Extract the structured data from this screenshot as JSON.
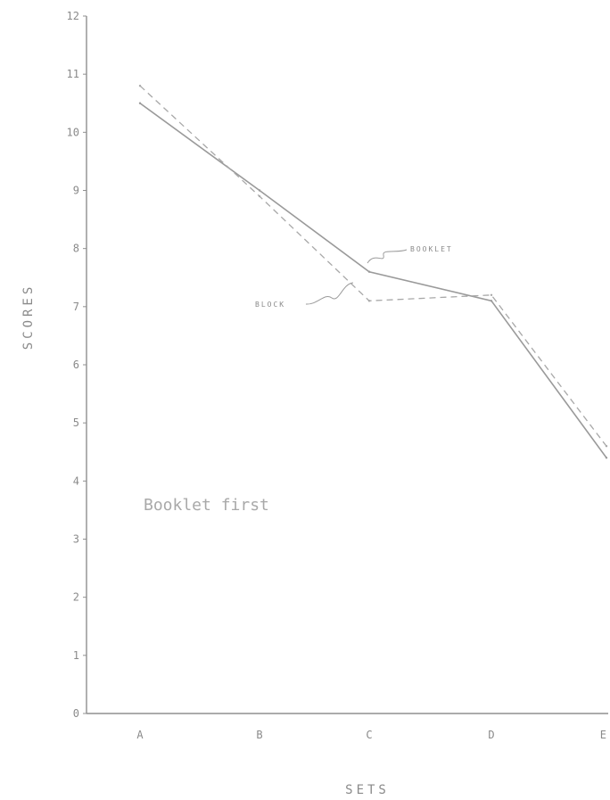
{
  "chart_data": {
    "type": "line",
    "categories": [
      "A",
      "B",
      "C",
      "D",
      "E"
    ],
    "series": [
      {
        "name": "BOOKLET",
        "values": [
          10.5,
          9.0,
          7.6,
          7.1,
          4.4
        ],
        "style": "solid",
        "color": "#9a9a9a"
      },
      {
        "name": "BLOCK",
        "values": [
          10.8,
          8.9,
          7.1,
          7.2,
          4.6
        ],
        "style": "dashed",
        "color": "#a8a8a8"
      }
    ],
    "xlabel": "SETS",
    "ylabel": "SCORES",
    "ylim": [
      0,
      12
    ],
    "yticks": [
      "0",
      "1",
      "2",
      "3",
      "4",
      "5",
      "6",
      "7",
      "8",
      "9",
      "10",
      "11",
      "12"
    ],
    "annotations": {
      "booklet_label": "BOOKLET",
      "block_label": "BLOCK",
      "note": "Booklet first"
    },
    "grid": false,
    "axis_color": "#8f8f8f"
  }
}
